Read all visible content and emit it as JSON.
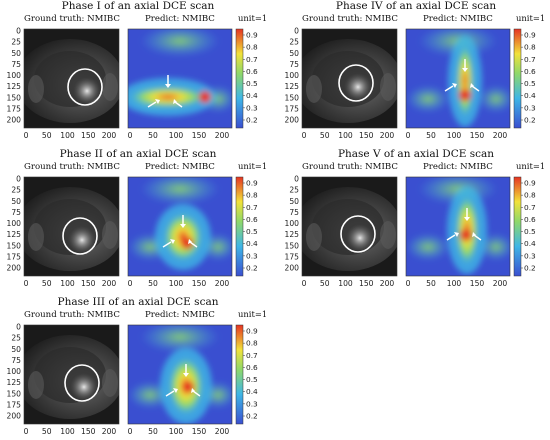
{
  "panels": [
    {
      "title": "Phase I of an axial DCE scan",
      "ground_truth_label": "Ground truth: NMIBC",
      "predict_label": "Predict: NMIBC",
      "unit_label": "unit=1",
      "y_ticks": [
        "0",
        "25",
        "50",
        "75",
        "100",
        "125",
        "150",
        "175",
        "200"
      ],
      "x_ticks_left": [
        "0",
        "50",
        "100",
        "150",
        "200"
      ],
      "x_ticks_right": [
        "0",
        "50",
        "100",
        "150",
        "200"
      ],
      "colorbar_ticks": [
        "0.9",
        "0.8",
        "0.7",
        "0.6",
        "0.5",
        "0.4",
        "0.3",
        "0.2"
      ]
    },
    {
      "title": "Phase IV of an axial DCE scan",
      "ground_truth_label": "Ground truth: NMIBC",
      "predict_label": "Predict: NMIBC",
      "unit_label": "unit=1",
      "y_ticks": [
        "0",
        "25",
        "50",
        "75",
        "100",
        "125",
        "150",
        "175",
        "200"
      ],
      "x_ticks_left": [
        "0",
        "50",
        "100",
        "150",
        "200"
      ],
      "x_ticks_right": [
        "0",
        "50",
        "100",
        "150",
        "200"
      ],
      "colorbar_ticks": [
        "0.9",
        "0.8",
        "0.7",
        "0.6",
        "0.5",
        "0.4",
        "0.3",
        "0.2"
      ]
    },
    {
      "title": "Phase II of an axial DCE scan",
      "ground_truth_label": "Ground truth: NMIBC",
      "predict_label": "Predict: NMIBC",
      "unit_label": "unit=1",
      "y_ticks": [
        "0",
        "25",
        "50",
        "75",
        "100",
        "125",
        "150",
        "175",
        "200"
      ],
      "x_ticks_left": [
        "0",
        "50",
        "100",
        "150",
        "200"
      ],
      "x_ticks_right": [
        "0",
        "50",
        "100",
        "150",
        "200"
      ],
      "colorbar_ticks": [
        "0.9",
        "0.8",
        "0.7",
        "0.6",
        "0.5",
        "0.4",
        "0.3",
        "0.2"
      ]
    },
    {
      "title": "Phase V of an axial DCE scan",
      "ground_truth_label": "Ground truth: NMIBC",
      "predict_label": "Predict: NMIBC",
      "unit_label": "unit=1",
      "y_ticks": [
        "0",
        "25",
        "50",
        "75",
        "100",
        "125",
        "150",
        "175",
        "200"
      ],
      "x_ticks_left": [
        "0",
        "50",
        "100",
        "150",
        "200"
      ],
      "x_ticks_right": [
        "0",
        "50",
        "100",
        "150",
        "200"
      ],
      "colorbar_ticks": [
        "0.9",
        "0.8",
        "0.7",
        "0.6",
        "0.5",
        "0.4",
        "0.3",
        "0.2"
      ]
    },
    {
      "title": "Phase III of an axial DCE scan",
      "ground_truth_label": "Ground truth: NMIBC",
      "predict_label": "Predict: NMIBC",
      "unit_label": "unit=1",
      "y_ticks": [
        "0",
        "25",
        "50",
        "75",
        "100",
        "125",
        "150",
        "175",
        "200"
      ],
      "x_ticks_left": [
        "0",
        "50",
        "100",
        "150",
        "200"
      ],
      "x_ticks_right": [
        "0",
        "50",
        "100",
        "150",
        "200"
      ],
      "colorbar_ticks": [
        "0.9",
        "0.8",
        "0.7",
        "0.6",
        "0.5",
        "0.4",
        "0.3",
        "0.2"
      ]
    }
  ],
  "colors": {
    "heatmap_low": "#3a4fd0",
    "heatmap_mid_low": "#3fb6e6",
    "heatmap_mid": "#8fd86a",
    "heatmap_mid_high": "#f2e23a",
    "heatmap_high": "#e53422",
    "annotation_circle": "#ffffff",
    "mri_background": "#1a1a1a"
  }
}
